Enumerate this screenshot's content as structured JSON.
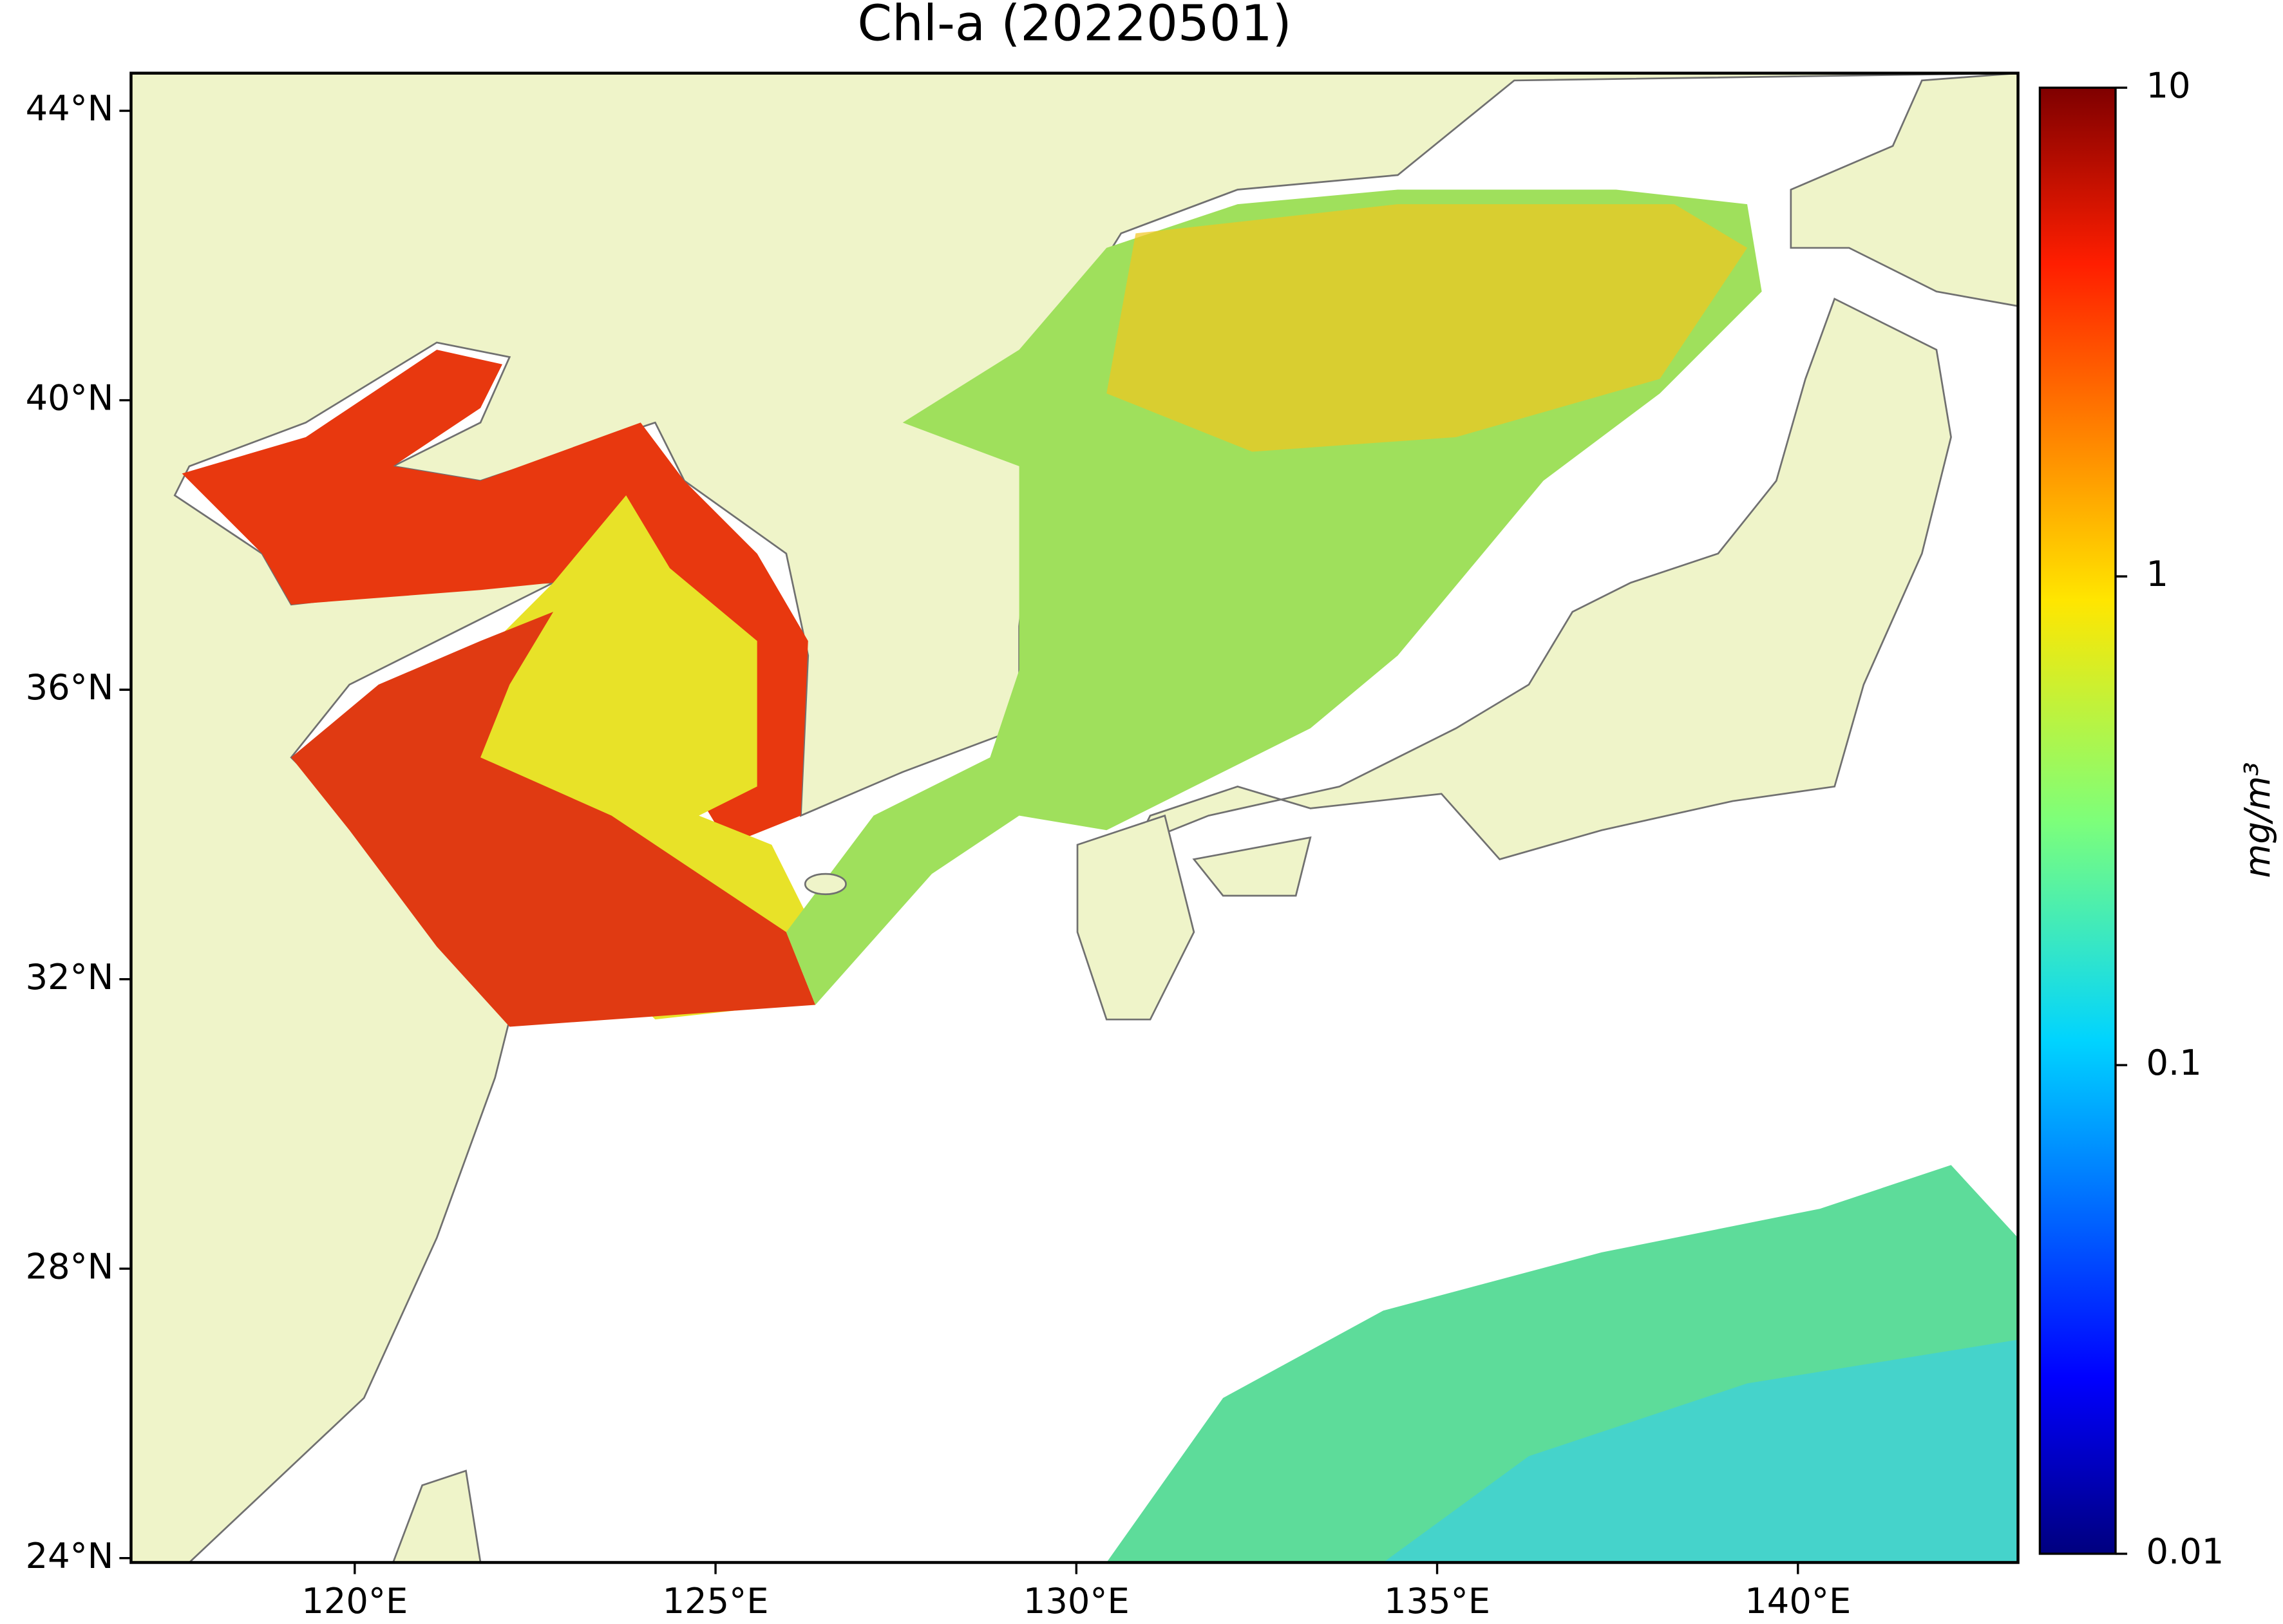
{
  "chart_data": {
    "type": "map",
    "title": "Chl-a (20220501)",
    "xlim": [
      116.9,
      143.05
    ],
    "ylim": [
      23.94,
      44.52
    ],
    "xticks": [
      {
        "value": 120,
        "label": "120°E"
      },
      {
        "value": 125,
        "label": "125°E"
      },
      {
        "value": 130,
        "label": "130°E"
      },
      {
        "value": 135,
        "label": "135°E"
      },
      {
        "value": 140,
        "label": "140°E"
      }
    ],
    "yticks": [
      {
        "value": 24,
        "label": "24°N"
      },
      {
        "value": 28,
        "label": "28°N"
      },
      {
        "value": 32,
        "label": "32°N"
      },
      {
        "value": 36,
        "label": "36°N"
      },
      {
        "value": 40,
        "label": "40°N"
      },
      {
        "value": 44,
        "label": "44°N"
      }
    ],
    "colorbar": {
      "label": "mg/m³",
      "lim": [
        0.01,
        10
      ],
      "ticks": [
        0.01,
        0.1,
        1,
        10
      ],
      "log": true
    }
  }
}
